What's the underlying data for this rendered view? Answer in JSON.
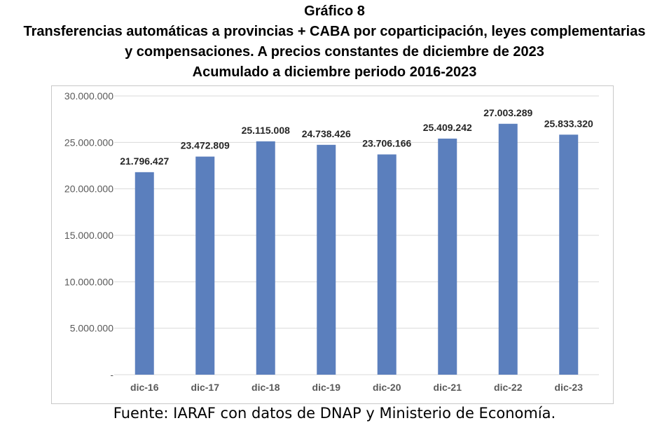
{
  "figure_label": "Gráfico 8",
  "title_line1": "Transferencias automáticas a provincias + CABA por coparticipación, leyes complementarias",
  "title_line2": "y compensaciones. A precios constantes de diciembre de 2023",
  "title_line3": "Acumulado a diciembre periodo 2016-2023",
  "source": "Fuente: IARAF con datos de DNAP y Ministerio de Economía.",
  "chart_data": {
    "type": "bar",
    "categories": [
      "dic-16",
      "dic-17",
      "dic-18",
      "dic-19",
      "dic-20",
      "dic-21",
      "dic-22",
      "dic-23"
    ],
    "values": [
      21796427,
      23472809,
      25115008,
      24738426,
      23706166,
      25409242,
      27003289,
      25833320
    ],
    "value_labels": [
      "21.796.427",
      "23.472.809",
      "25.115.008",
      "24.738.426",
      "23.706.166",
      "25.409.242",
      "27.003.289",
      "25.833.320"
    ],
    "ylim": [
      0,
      30000000
    ],
    "y_ticks": [
      0,
      5000000,
      10000000,
      15000000,
      20000000,
      25000000,
      30000000
    ],
    "y_tick_labels": [
      "-",
      "5.000.000",
      "10.000.000",
      "15.000.000",
      "20.000.000",
      "25.000.000",
      "30.000.000"
    ],
    "grid": true,
    "bar_color": "#5b7fbd",
    "grid_color": "#d9d9d9"
  }
}
